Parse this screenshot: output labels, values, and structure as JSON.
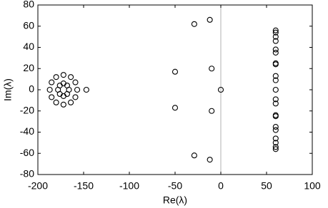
{
  "chart_data": {
    "type": "scatter",
    "xlabel": "Re(λ)",
    "ylabel": "Im(λ)",
    "xlim": [
      -200,
      100
    ],
    "ylim": [
      -80,
      80
    ],
    "xticks": [
      -200,
      -150,
      -100,
      -50,
      0,
      50,
      100
    ],
    "yticks": [
      -80,
      -60,
      -40,
      -20,
      0,
      20,
      40,
      60,
      80
    ],
    "vline": 0,
    "color": "#000000",
    "x": [
      -187,
      -185,
      -180,
      -172,
      -164,
      -159,
      -157,
      -159,
      -164,
      -172,
      -180,
      -185,
      -178,
      -176,
      -172,
      -168,
      -166,
      -168,
      -172,
      -176,
      -147,
      -50,
      -50,
      -29,
      -29,
      -12,
      -12,
      -10,
      -10,
      0,
      60,
      60,
      60,
      60,
      60,
      60,
      60,
      60,
      60,
      60,
      60,
      60,
      60,
      60,
      60,
      60,
      60,
      60,
      60,
      60,
      60
    ],
    "y": [
      0,
      7,
      12,
      14,
      12,
      7,
      0,
      -7,
      -12,
      -14,
      -12,
      -7,
      0,
      4,
      6,
      4,
      0,
      -4,
      -6,
      -4,
      0,
      17,
      -17,
      62,
      -62,
      66,
      -66,
      20,
      -20,
      0,
      56,
      54,
      50,
      46,
      38,
      35,
      25,
      24,
      13,
      9,
      0,
      -9,
      -13,
      -24,
      -25,
      -35,
      -38,
      -46,
      -50,
      -54,
      -56
    ]
  }
}
